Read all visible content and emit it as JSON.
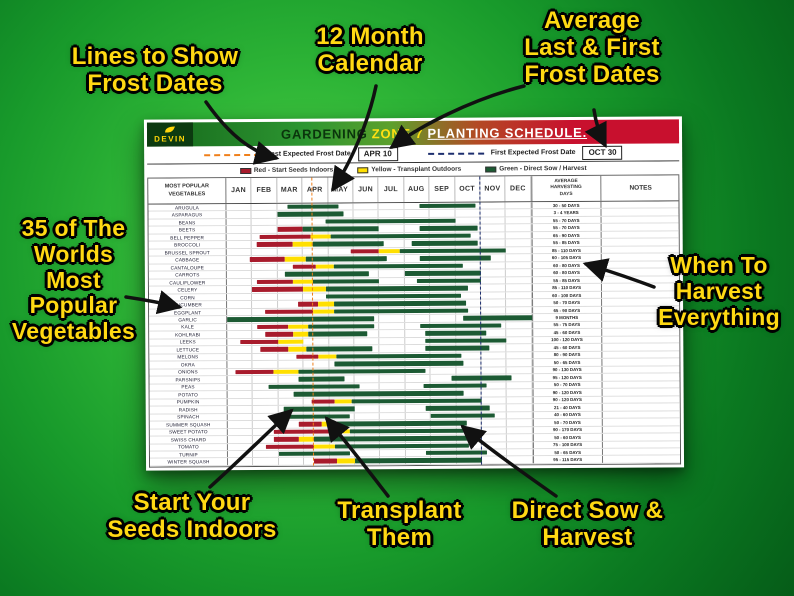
{
  "colors": {
    "annotation_text": "#ffd913",
    "background_green": "#189a2b"
  },
  "annotations": {
    "top_left": "Lines to Show\nFrost Dates",
    "top_center": "12 Month\nCalendar",
    "top_right": "Average\nLast & First\nFrost Dates",
    "left_side": "35 of The\nWorlds\nMost\nPopular\nVegetables",
    "right_side": "When To\nHarvest\nEverything",
    "bottom_left": "Start Your\nSeeds Indoors",
    "bottom_center": "Transplant\nThem",
    "bottom_right": "Direct Sow &\nHarvest"
  },
  "chart": {
    "logo_text": "DEVIN",
    "title": {
      "part1": "GARDENING",
      "part2": "ZONE 7",
      "part3": "PLANTING SCHEDULE."
    },
    "table": {
      "veg_header": "MOST POPULAR\nVEGETABLES",
      "harvest_header": "AVERAGE\nHARVESTING\nDAYS",
      "notes_header": "NOTES"
    }
  },
  "chart_data": {
    "type": "bar",
    "subtype": "gantt-planting-schedule",
    "title": "GARDENING ZONE 7 PLANTING SCHEDULE",
    "x_axis": {
      "unit": "month",
      "range": [
        0,
        12
      ]
    },
    "months": [
      "JAN",
      "FEB",
      "MAR",
      "APR",
      "MAY",
      "JUN",
      "JUL",
      "AUG",
      "SEP",
      "OCT",
      "NOV",
      "DEC"
    ],
    "colors": {
      "red": "#a81b2c",
      "yellow": "#ffdf00",
      "green": "#1c5a33"
    },
    "legend": [
      {
        "color": "#a81b2c",
        "label": "Red - Start Seeds Indoors"
      },
      {
        "color": "#ffdf00",
        "label": "Yellow - Transplant Outdoors"
      },
      {
        "color": "#1c5a33",
        "label": "Green - Direct Sow / Harvest"
      }
    ],
    "frost_lines": [
      {
        "name": "last-frost-line",
        "label": "Last Expected Frost Date",
        "date": "APR 10",
        "month": 3.33,
        "color": "#ef7f1a"
      },
      {
        "name": "first-frost-line",
        "label": "First Expected Frost Date",
        "date": "OCT 30",
        "month": 9.97,
        "color": "#1d2e6e"
      }
    ],
    "rows": [
      {
        "name": "ARUGULA",
        "harvest": "30 - 50 DAYS",
        "segments": [
          [
            2.4,
            4.4,
            "green"
          ],
          [
            7.6,
            9.8,
            "green"
          ]
        ]
      },
      {
        "name": "ASPARAGUS",
        "harvest": "3 - 4 YEARS",
        "segments": [
          [
            2.0,
            4.6,
            "green"
          ]
        ]
      },
      {
        "name": "BEANS",
        "harvest": "55 - 70 DAYS",
        "segments": [
          [
            3.9,
            9.0,
            "green"
          ]
        ]
      },
      {
        "name": "BEETS",
        "harvest": "55 - 70 DAYS",
        "segments": [
          [
            2.0,
            3.0,
            "red"
          ],
          [
            3.0,
            6.0,
            "green"
          ],
          [
            7.6,
            9.9,
            "green"
          ]
        ]
      },
      {
        "name": "BELL PEPPER",
        "harvest": "65 - 90 DAYS",
        "segments": [
          [
            1.3,
            3.3,
            "red"
          ],
          [
            3.3,
            4.1,
            "yellow"
          ],
          [
            4.1,
            9.6,
            "green"
          ]
        ]
      },
      {
        "name": "BROCCOLI",
        "harvest": "55 - 85 DAYS",
        "segments": [
          [
            1.2,
            2.6,
            "red"
          ],
          [
            2.6,
            3.4,
            "yellow"
          ],
          [
            3.4,
            6.2,
            "green"
          ],
          [
            7.3,
            9.9,
            "green"
          ]
        ]
      },
      {
        "name": "BRUSSEL SPROUT",
        "harvest": "85 - 110 DAYS",
        "segments": [
          [
            4.9,
            6.0,
            "red"
          ],
          [
            6.0,
            6.8,
            "yellow"
          ],
          [
            6.8,
            11.0,
            "green"
          ]
        ]
      },
      {
        "name": "CABBAGE",
        "harvest": "60 - 105 DAYS",
        "segments": [
          [
            0.9,
            2.3,
            "red"
          ],
          [
            2.3,
            3.1,
            "yellow"
          ],
          [
            3.1,
            6.3,
            "green"
          ],
          [
            7.6,
            10.4,
            "green"
          ]
        ]
      },
      {
        "name": "CANTALOUPE",
        "harvest": "60 - 80 DAYS",
        "segments": [
          [
            2.6,
            3.5,
            "red"
          ],
          [
            3.5,
            4.2,
            "yellow"
          ],
          [
            4.2,
            9.3,
            "green"
          ]
        ]
      },
      {
        "name": "CARROTS",
        "harvest": "60 - 80 DAYS",
        "segments": [
          [
            2.3,
            5.6,
            "green"
          ],
          [
            7.0,
            10.0,
            "green"
          ]
        ]
      },
      {
        "name": "CAULIFLOWER",
        "harvest": "55 - 85 DAYS",
        "segments": [
          [
            1.2,
            2.6,
            "red"
          ],
          [
            2.6,
            3.4,
            "yellow"
          ],
          [
            3.4,
            6.0,
            "green"
          ],
          [
            7.5,
            10.0,
            "green"
          ]
        ]
      },
      {
        "name": "CELERY",
        "harvest": "85 - 110 DAYS",
        "segments": [
          [
            1.0,
            3.0,
            "red"
          ],
          [
            3.0,
            3.9,
            "yellow"
          ],
          [
            3.9,
            9.5,
            "green"
          ]
        ]
      },
      {
        "name": "CORN",
        "harvest": "60 - 100 DAYS",
        "segments": [
          [
            3.9,
            9.2,
            "green"
          ]
        ]
      },
      {
        "name": "CUCUMBER",
        "harvest": "50 - 70 DAYS",
        "segments": [
          [
            2.8,
            3.6,
            "red"
          ],
          [
            3.6,
            4.2,
            "yellow"
          ],
          [
            4.2,
            9.4,
            "green"
          ]
        ]
      },
      {
        "name": "EGGPLANT",
        "harvest": "65 - 90 DAYS",
        "segments": [
          [
            1.5,
            3.4,
            "red"
          ],
          [
            3.4,
            4.2,
            "yellow"
          ],
          [
            4.2,
            9.5,
            "green"
          ]
        ]
      },
      {
        "name": "GARLIC",
        "harvest": "9 MONTHS",
        "segments": [
          [
            0.0,
            5.8,
            "green"
          ],
          [
            9.3,
            12.0,
            "green"
          ]
        ]
      },
      {
        "name": "KALE",
        "harvest": "55 - 75 DAYS",
        "segments": [
          [
            1.2,
            2.4,
            "red"
          ],
          [
            2.4,
            3.2,
            "yellow"
          ],
          [
            3.2,
            5.8,
            "green"
          ],
          [
            7.6,
            10.8,
            "green"
          ]
        ]
      },
      {
        "name": "KOHLRABI",
        "harvest": "45 - 60 DAYS",
        "segments": [
          [
            1.5,
            2.6,
            "red"
          ],
          [
            2.6,
            3.2,
            "yellow"
          ],
          [
            3.2,
            5.5,
            "green"
          ],
          [
            7.8,
            10.2,
            "green"
          ]
        ]
      },
      {
        "name": "LEEKS",
        "harvest": "100 - 120 DAYS",
        "segments": [
          [
            0.5,
            2.0,
            "red"
          ],
          [
            2.0,
            3.0,
            "yellow"
          ],
          [
            7.8,
            11.0,
            "green"
          ]
        ]
      },
      {
        "name": "LETTUCE",
        "harvest": "45 - 60 DAYS",
        "segments": [
          [
            1.3,
            2.4,
            "red"
          ],
          [
            2.4,
            3.1,
            "yellow"
          ],
          [
            3.1,
            5.7,
            "green"
          ],
          [
            7.8,
            10.3,
            "green"
          ]
        ]
      },
      {
        "name": "MELONS",
        "harvest": "80 - 90 DAYS",
        "segments": [
          [
            2.7,
            3.6,
            "red"
          ],
          [
            3.6,
            4.3,
            "yellow"
          ],
          [
            4.3,
            9.2,
            "green"
          ]
        ]
      },
      {
        "name": "OKRA",
        "harvest": "50 - 65 DAYS",
        "segments": [
          [
            4.2,
            9.3,
            "green"
          ]
        ]
      },
      {
        "name": "ONIONS",
        "harvest": "90 - 130 DAYS",
        "segments": [
          [
            0.3,
            1.8,
            "red"
          ],
          [
            1.8,
            2.8,
            "yellow"
          ],
          [
            2.8,
            7.8,
            "green"
          ]
        ]
      },
      {
        "name": "PARSNIPS",
        "harvest": "95 - 120 DAYS",
        "segments": [
          [
            2.8,
            4.6,
            "green"
          ],
          [
            8.8,
            11.2,
            "green"
          ]
        ]
      },
      {
        "name": "PEAS",
        "harvest": "50 - 70 DAYS",
        "segments": [
          [
            1.6,
            5.2,
            "green"
          ],
          [
            7.7,
            10.2,
            "green"
          ]
        ]
      },
      {
        "name": "POTATO",
        "harvest": "90 - 120 DAYS",
        "segments": [
          [
            2.6,
            9.3,
            "green"
          ]
        ]
      },
      {
        "name": "PUMPKIN",
        "harvest": "90 - 120 DAYS",
        "segments": [
          [
            3.3,
            4.2,
            "red"
          ],
          [
            4.2,
            4.9,
            "yellow"
          ],
          [
            4.9,
            10.0,
            "green"
          ]
        ]
      },
      {
        "name": "RADISH",
        "harvest": "21 - 40 DAYS",
        "segments": [
          [
            2.2,
            5.0,
            "green"
          ],
          [
            7.8,
            10.3,
            "green"
          ]
        ]
      },
      {
        "name": "SPINACH",
        "harvest": "40 - 60 DAYS",
        "segments": [
          [
            1.8,
            4.8,
            "green"
          ],
          [
            8.0,
            10.5,
            "green"
          ]
        ]
      },
      {
        "name": "SUMMER SQUASH",
        "harvest": "50 - 70 DAYS",
        "segments": [
          [
            2.8,
            3.7,
            "red"
          ],
          [
            3.7,
            4.3,
            "yellow"
          ],
          [
            4.3,
            9.4,
            "green"
          ]
        ]
      },
      {
        "name": "SWEET POTATO",
        "harvest": "90 - 170 DAYS",
        "segments": [
          [
            1.8,
            4.0,
            "red"
          ],
          [
            4.0,
            4.8,
            "yellow"
          ],
          [
            4.8,
            9.3,
            "green"
          ]
        ]
      },
      {
        "name": "SWISS CHARD",
        "harvest": "50 - 60 DAYS",
        "segments": [
          [
            1.8,
            2.8,
            "red"
          ],
          [
            2.8,
            3.4,
            "yellow"
          ],
          [
            3.4,
            9.8,
            "green"
          ]
        ]
      },
      {
        "name": "TOMATO",
        "harvest": "75 - 100 DAYS",
        "segments": [
          [
            1.5,
            3.4,
            "red"
          ],
          [
            3.4,
            4.2,
            "yellow"
          ],
          [
            4.2,
            9.5,
            "green"
          ]
        ]
      },
      {
        "name": "TURNIP",
        "harvest": "50 - 65 DAYS",
        "segments": [
          [
            2.0,
            4.8,
            "green"
          ],
          [
            7.8,
            10.2,
            "green"
          ]
        ]
      },
      {
        "name": "WINTER SQUASH",
        "harvest": "95 - 115 DAYS",
        "segments": [
          [
            3.4,
            4.3,
            "red"
          ],
          [
            4.3,
            5.0,
            "yellow"
          ],
          [
            5.0,
            10.0,
            "green"
          ]
        ]
      }
    ]
  }
}
